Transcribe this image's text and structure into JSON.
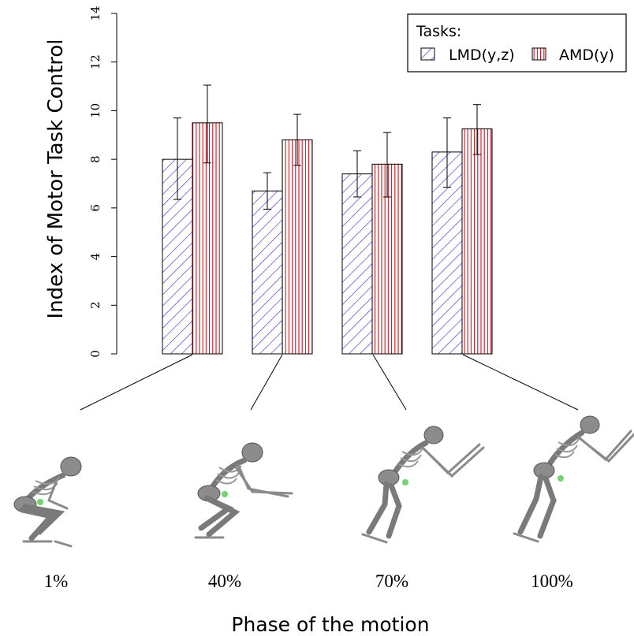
{
  "chart_data": {
    "type": "bar",
    "categories": [
      "1%",
      "40%",
      "70%",
      "100%"
    ],
    "series": [
      {
        "name": "LMD(y,z)",
        "values": [
          8.0,
          6.7,
          7.4,
          8.3
        ],
        "err_low": [
          6.35,
          5.95,
          6.45,
          6.85
        ],
        "err_high": [
          9.7,
          7.45,
          8.35,
          9.7
        ],
        "color": "#3a1fd0",
        "pattern": "diagonal-hatch"
      },
      {
        "name": "AMD(y)",
        "values": [
          9.5,
          8.8,
          7.8,
          9.25
        ],
        "err_low": [
          7.85,
          7.75,
          6.45,
          8.2
        ],
        "err_high": [
          11.05,
          9.85,
          9.1,
          10.25
        ],
        "color": "#c0141e",
        "pattern": "vertical-hatch"
      }
    ],
    "yticks": [
      "0",
      "2",
      "4",
      "6",
      "8",
      "10",
      "12",
      "14"
    ],
    "ylim": [
      0,
      14
    ],
    "ylabel": "Index of Motor Task Control",
    "xlabel": "Phase of the motion",
    "legend": {
      "title": "Tasks:",
      "position": "top-right"
    },
    "grid": false
  },
  "phase_images": [
    {
      "label": "1%",
      "icon": "skeleton-crouch-icon"
    },
    {
      "label": "40%",
      "icon": "skeleton-lean-icon"
    },
    {
      "label": "70%",
      "icon": "skeleton-extend-icon"
    },
    {
      "label": "100%",
      "icon": "skeleton-jump-icon"
    }
  ]
}
